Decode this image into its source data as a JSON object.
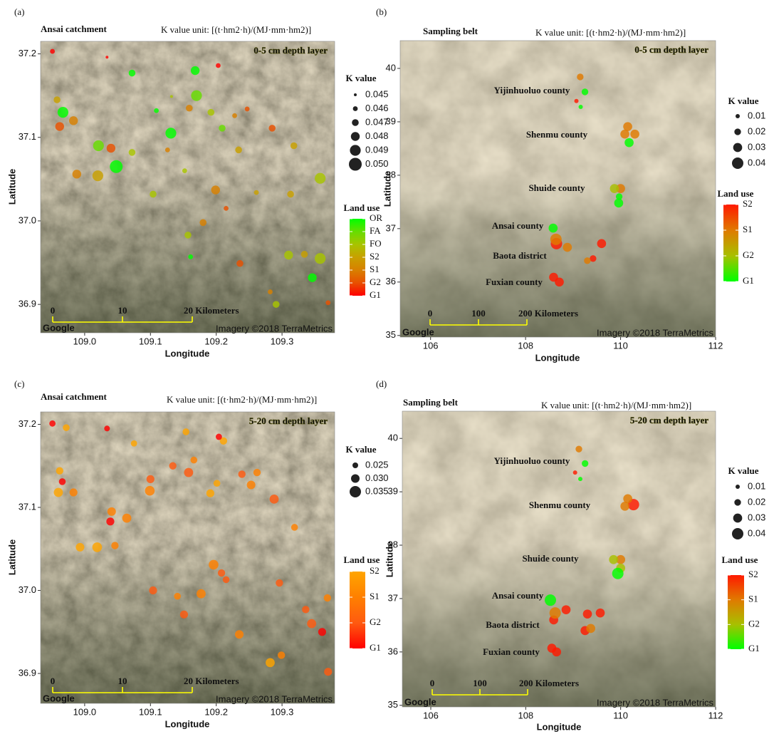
{
  "chart_data": [
    {
      "type": "scatter",
      "panel_label": "(a)",
      "title": "Ansai catchment",
      "title_color": "#e8312a",
      "subtitle": "K value unit: [(t·hm2·h)/(MJ·mm·hm2)]",
      "annotation": "0-5 cm depth layer",
      "x_label": "Longitude",
      "y_label": "Latitude",
      "xlim": [
        108.933,
        109.38
      ],
      "ylim": [
        36.866,
        37.215
      ],
      "xticks": [
        {
          "value": 109,
          "label": "109.0"
        },
        109.1,
        109.2,
        109.3
      ],
      "yticks": [
        36.9,
        {
          "value": 37,
          "label": "37.0"
        },
        37.1,
        37.2
      ],
      "scale_bar": [
        "0",
        "10",
        "20 Kilometers"
      ],
      "credits": [
        "Google",
        "Imagery ©2018 TerraMetrics"
      ],
      "size_legend": {
        "title": "K value",
        "values": [
          0.045,
          0.046,
          0.047,
          0.048,
          0.049,
          {
            "value": 0.05,
            "label": "0.050"
          }
        ]
      },
      "color_legend_title": "Land use",
      "series": [
        {
          "name": "OR",
          "color": "#00ff00",
          "x": [
            109.072,
            108.967,
            109.048,
            109.131,
            109.168,
            109.161,
            109.346,
            109.109
          ],
          "values": [
            37.177,
            37.13,
            37.065,
            37.105,
            37.18,
            36.957,
            36.932,
            37.132
          ],
          "sizes": [
            0.047,
            0.049,
            0.05,
            0.049,
            0.048,
            0.046,
            0.048,
            0.046
          ]
        },
        {
          "name": "FA",
          "color": "#66dd00",
          "x": [
            109.021,
            109.17,
            109.209
          ],
          "values": [
            37.09,
            37.15,
            37.111
          ],
          "sizes": [
            0.049,
            0.049,
            0.047
          ]
        },
        {
          "name": "FO",
          "color": "#a8c400",
          "x": [
            109.072,
            109.358,
            109.157,
            109.104,
            109.152,
            109.31,
            109.358,
            109.291,
            109.132,
            109.192
          ],
          "values": [
            37.082,
            37.051,
            36.983,
            37.032,
            37.06,
            36.959,
            36.955,
            36.9,
            37.149,
            37.13
          ],
          "sizes": [
            0.047,
            0.049,
            0.047,
            0.047,
            0.046,
            0.048,
            0.049,
            0.047,
            0.045,
            0.047
          ]
        },
        {
          "name": "S2",
          "color": "#c8a000",
          "x": [
            108.958,
            109.02,
            109.318,
            109.261,
            109.313,
            109.334,
            109.234
          ],
          "values": [
            37.145,
            37.054,
            37.09,
            37.034,
            37.032,
            36.96,
            37.085
          ],
          "sizes": [
            0.047,
            0.049,
            0.047,
            0.046,
            0.047,
            0.047,
            0.047
          ]
        },
        {
          "name": "S1",
          "color": "#d88000",
          "x": [
            108.983,
            108.988,
            109.159,
            109.228,
            109.199,
            109.18,
            109.282,
            109.126
          ],
          "values": [
            37.12,
            37.056,
            37.135,
            37.126,
            37.037,
            36.998,
            36.915,
            37.085
          ],
          "sizes": [
            0.048,
            0.048,
            0.047,
            0.046,
            0.048,
            0.047,
            0.046,
            0.046
          ]
        },
        {
          "name": "G2",
          "color": "#e85000",
          "x": [
            108.962,
            109.04,
            109.247,
            109.285,
            109.215,
            109.236,
            109.37
          ],
          "values": [
            37.113,
            37.087,
            37.134,
            37.111,
            37.015,
            36.949,
            36.902
          ],
          "sizes": [
            0.048,
            0.048,
            0.046,
            0.047,
            0.046,
            0.047,
            0.046
          ]
        },
        {
          "name": "G1",
          "color": "#ff0000",
          "x": [
            108.951,
            109.034,
            109.203
          ],
          "values": [
            37.203,
            37.196,
            37.186
          ],
          "sizes": [
            0.046,
            0.045,
            0.046
          ]
        }
      ]
    },
    {
      "type": "scatter",
      "panel_label": "(b)",
      "title": "Sampling belt",
      "title_color": "#1010d0",
      "subtitle": "K value unit: [(t·hm2·h)/(MJ·mm·hm2)]",
      "annotation": "0-5 cm depth layer",
      "x_label": "Longitude",
      "y_label": "Latitude",
      "xlim": [
        105.36,
        112
      ],
      "ylim": [
        34.97,
        40.52
      ],
      "xticks": [
        106,
        108,
        110,
        112
      ],
      "yticks": [
        35,
        36,
        37,
        38,
        39,
        40
      ],
      "scale_bar": [
        "0",
        "100",
        "200 Kilometers"
      ],
      "credits": [
        "Google",
        "Imagery ©2018 TerraMetrics"
      ],
      "places": [
        "Yijinhuoluo county",
        "Shenmu county",
        "Shuide county",
        "Ansai county",
        "Baota district",
        "Fuxian county"
      ],
      "size_legend": {
        "title": "K value",
        "values": [
          0.01,
          0.02,
          0.03,
          0.04
        ]
      },
      "color_legend_title": "Land use",
      "series": [
        {
          "name": "S2",
          "color": "#ff1a00",
          "x": [
            109.07,
            108.65,
            109.6,
            109.42,
            108.59,
            108.71
          ],
          "values": [
            39.39,
            36.72,
            36.72,
            36.44,
            36.09,
            36.0
          ],
          "sizes": [
            0.01,
            0.04,
            0.03,
            0.02,
            0.03,
            0.03
          ]
        },
        {
          "name": "S1",
          "color": "#e07a00",
          "x": [
            109.15,
            110.15,
            110.09,
            110.3,
            110.0,
            108.64,
            108.88,
            109.3
          ],
          "values": [
            39.84,
            38.91,
            38.77,
            38.77,
            37.75,
            36.8,
            36.65,
            36.4
          ],
          "sizes": [
            0.02,
            0.03,
            0.03,
            0.03,
            0.03,
            0.04,
            0.03,
            0.02
          ]
        },
        {
          "name": "G2",
          "color": "#a8c000",
          "x": [
            109.87
          ],
          "values": [
            37.75
          ],
          "sizes": [
            0.03
          ]
        },
        {
          "name": "G1",
          "color": "#00ff00",
          "x": [
            109.25,
            109.16,
            110.18,
            109.96,
            109.97,
            108.58
          ],
          "values": [
            39.56,
            39.28,
            38.61,
            37.48,
            37.6,
            37.01
          ],
          "sizes": [
            0.02,
            0.01,
            0.03,
            0.03,
            0.02,
            0.03
          ]
        }
      ]
    },
    {
      "type": "scatter",
      "panel_label": "(c)",
      "title": "Ansai catchment",
      "title_color": "#e8312a",
      "subtitle": "K value unit: [(t·hm2·h)/(MJ·mm·hm2)]",
      "annotation": "5-20 cm depth layer",
      "x_label": "Longitude",
      "y_label": "Latitude",
      "xlim": [
        108.933,
        109.38
      ],
      "ylim": [
        36.864,
        37.215
      ],
      "xticks": [
        {
          "value": 109,
          "label": "109.0"
        },
        109.1,
        109.2,
        109.3
      ],
      "yticks": [
        36.9,
        {
          "value": 37,
          "label": "37.0"
        },
        37.1,
        37.2
      ],
      "scale_bar": [
        "0",
        "10",
        "20 Kilometers"
      ],
      "credits": [
        "Google",
        "Imagery ©2018 TerraMetrics"
      ],
      "size_legend": {
        "title": "K value",
        "values": [
          0.025,
          {
            "value": 0.03,
            "label": "0.030"
          },
          0.035
        ]
      },
      "color_legend_title": "Land use",
      "series": [
        {
          "name": "S2",
          "color": "#ffa500",
          "x": [
            108.972,
            109.075,
            108.962,
            108.96,
            108.993,
            109.019,
            109.154,
            109.211,
            109.191,
            109.201,
            109.282
          ],
          "values": [
            37.196,
            37.177,
            37.144,
            37.118,
            37.052,
            37.052,
            37.191,
            37.18,
            37.117,
            37.129,
            36.913
          ],
          "sizes": [
            0.027,
            0.026,
            0.028,
            0.031,
            0.03,
            0.032,
            0.027,
            0.028,
            0.029,
            0.027,
            0.031
          ]
        },
        {
          "name": "S1",
          "color": "#ff8000",
          "x": [
            108.983,
            109.041,
            109.064,
            109.046,
            109.099,
            109.166,
            109.253,
            109.262,
            109.319,
            109.196,
            109.177,
            109.235,
            109.299,
            109.141,
            109.369
          ],
          "values": [
            37.118,
            37.095,
            37.087,
            37.054,
            37.12,
            37.157,
            37.127,
            37.142,
            37.076,
            37.031,
            36.996,
            36.947,
            36.922,
            36.993,
            36.991
          ],
          "sizes": [
            0.029,
            0.03,
            0.031,
            0.028,
            0.032,
            0.027,
            0.03,
            0.028,
            0.027,
            0.032,
            0.031,
            0.03,
            0.028,
            0.027,
            0.028
          ]
        },
        {
          "name": "G2",
          "color": "#ff5a10",
          "x": [
            109.1,
            109.134,
            109.158,
            109.239,
            109.288,
            109.208,
            109.215,
            109.151,
            109.296,
            109.336,
            109.345,
            109.37,
            109.104
          ],
          "values": [
            37.134,
            37.15,
            37.142,
            37.14,
            37.11,
            37.021,
            37.013,
            36.971,
            37.009,
            36.977,
            36.96,
            36.902,
            37.0
          ],
          "sizes": [
            0.029,
            0.028,
            0.031,
            0.028,
            0.031,
            0.028,
            0.027,
            0.029,
            0.028,
            0.028,
            0.031,
            0.029,
            0.029
          ]
        },
        {
          "name": "G1",
          "color": "#ff0000",
          "x": [
            108.951,
            109.034,
            108.966,
            109.039,
            109.204,
            109.361
          ],
          "values": [
            37.201,
            37.195,
            37.131,
            37.083,
            37.185,
            36.95
          ],
          "sizes": [
            0.026,
            0.025,
            0.027,
            0.029,
            0.026,
            0.029
          ]
        }
      ]
    },
    {
      "type": "scatter",
      "panel_label": "(d)",
      "title": "Sampling belt",
      "title_color": "#1010d0",
      "subtitle": "K value unit: [(t·hm2·h)/(MJ·mm·hm2)]",
      "annotation": "5-20 cm depth layer",
      "x_label": "Longitude",
      "y_label": "Latitude",
      "xlim": [
        105.4,
        112
      ],
      "ylim": [
        34.97,
        40.51
      ],
      "xticks": [
        106,
        108,
        110,
        112
      ],
      "yticks": [
        35,
        36,
        37,
        38,
        39,
        40
      ],
      "scale_bar": [
        "0",
        "100",
        "200 Kilometers"
      ],
      "credits": [
        "Google",
        "Imagery ©2018 TerraMetrics"
      ],
      "places": [
        "Yijinhuoluo county",
        "Shenmu county",
        "Shuide county",
        "Ansai county",
        "Baota district",
        "Fuxian county"
      ],
      "size_legend": {
        "title": "K value",
        "values": [
          0.01,
          0.02,
          0.03,
          0.04
        ]
      },
      "color_legend_title": "Land use",
      "series": [
        {
          "name": "S2",
          "color": "#ff1a00",
          "x": [
            109.04,
            110.27,
            108.59,
            108.85,
            109.57,
            109.3,
            109.25,
            108.55,
            108.65
          ],
          "values": [
            39.36,
            38.76,
            36.6,
            36.79,
            36.73,
            36.71,
            36.4,
            36.07,
            36.0
          ],
          "sizes": [
            0.01,
            0.04,
            0.03,
            0.03,
            0.03,
            0.03,
            0.03,
            0.03,
            0.03
          ]
        },
        {
          "name": "S1",
          "color": "#e07a00",
          "x": [
            109.12,
            110.15,
            110.09,
            110.0,
            108.62,
            109.37
          ],
          "values": [
            39.8,
            38.87,
            38.73,
            37.73,
            36.73,
            36.44
          ],
          "sizes": [
            0.02,
            0.03,
            0.03,
            0.03,
            0.04,
            0.03
          ]
        },
        {
          "name": "G2",
          "color": "#a8c000",
          "x": [
            109.85,
            110.0
          ],
          "values": [
            37.73,
            37.57
          ],
          "sizes": [
            0.03,
            0.03
          ]
        },
        {
          "name": "G1",
          "color": "#00ff00",
          "x": [
            109.25,
            109.15,
            109.94,
            108.52
          ],
          "values": [
            39.53,
            39.24,
            37.47,
            36.97
          ],
          "sizes": [
            0.02,
            0.01,
            0.04,
            0.04
          ]
        }
      ]
    }
  ]
}
